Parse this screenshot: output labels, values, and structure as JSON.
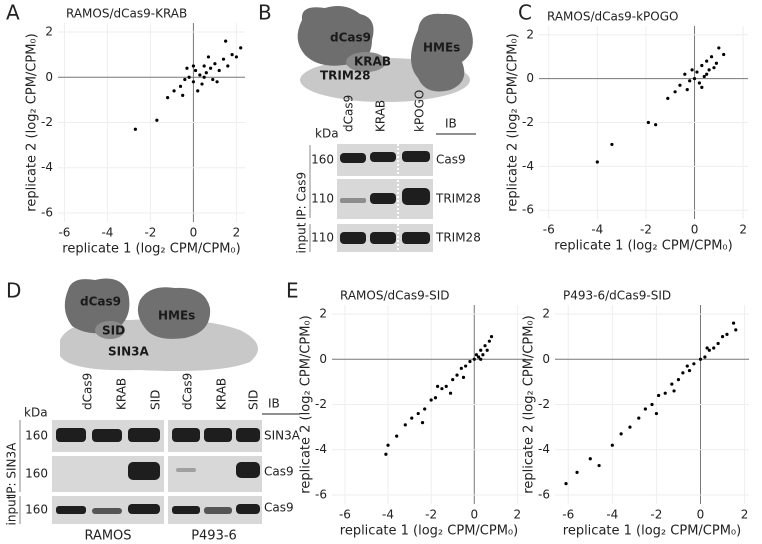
{
  "panel_labels": [
    "A",
    "B",
    "C",
    "D",
    "E"
  ],
  "chart_data": [
    {
      "type": "scatter",
      "title": "RAMOS/dCas9-KRAB",
      "xlabel": "replicate 1 (log₂ CPM/CPM₀)",
      "ylabel": "replicate 2 (log₂ CPM/CPM₀)",
      "xlim": [
        -6.3,
        2.4
      ],
      "ylim": [
        -6.4,
        2.4
      ],
      "xticks": [
        -6,
        -4,
        -2,
        0,
        2
      ],
      "yticks": [
        -6,
        -4,
        -2,
        0,
        2
      ],
      "color": "#000000",
      "x": [
        -2.7,
        -1.7,
        -1.2,
        -0.9,
        -0.6,
        -0.4,
        -0.2,
        0,
        0.1,
        0.3,
        0.4,
        0.5,
        0.6,
        0.8,
        0.9,
        1.0,
        1.2,
        1.4,
        1.6,
        1.8,
        2.0,
        2.2,
        0.2,
        -0.3,
        0.7,
        1.1,
        -0.5,
        0.0,
        0.5,
        1.5
      ],
      "values": [
        -2.3,
        -1.9,
        -0.9,
        -0.6,
        -0.4,
        -0.1,
        0.0,
        -0.2,
        0.3,
        0.1,
        -0.3,
        0.5,
        0.2,
        0.4,
        -0.1,
        0.6,
        0.3,
        0.8,
        0.5,
        1.0,
        0.9,
        1.3,
        -0.6,
        0.4,
        0.9,
        -0.2,
        -0.8,
        0.5,
        0.0,
        1.6
      ]
    },
    {
      "type": "scatter",
      "title": "RAMOS/dCas9-kPOGO",
      "xlabel": "replicate 1 (log₂ CPM/CPM₀)",
      "ylabel": "replicate 2 (log₂ CPM/CPM₀)",
      "xlim": [
        -6.4,
        2.2
      ],
      "ylim": [
        -6.4,
        2.4
      ],
      "xticks": [
        -6,
        -4,
        -2,
        0,
        2
      ],
      "yticks": [
        -6,
        -4,
        -2,
        0,
        2
      ],
      "color": "#000000",
      "x": [
        -4.0,
        -3.4,
        -1.9,
        -1.6,
        -1.1,
        -0.8,
        -0.6,
        -0.4,
        -0.2,
        -0.1,
        0.0,
        0.1,
        0.2,
        0.3,
        0.4,
        0.5,
        0.6,
        0.7,
        0.8,
        1.0,
        1.2,
        0.3,
        -0.3,
        0.5,
        0.9
      ],
      "values": [
        -3.8,
        -3.0,
        -2.0,
        -2.1,
        -0.9,
        -0.6,
        -0.3,
        0.2,
        -0.1,
        0.4,
        0.0,
        0.3,
        -0.2,
        0.6,
        0.1,
        0.8,
        0.4,
        1.0,
        0.5,
        1.4,
        1.1,
        -0.4,
        -0.5,
        0.2,
        0.7
      ]
    },
    {
      "type": "scatter",
      "title": "RAMOS/dCas9-SID",
      "xlabel": "replicate 1 (log₂ CPM/CPM₀)",
      "ylabel": "replicate 2 (log₂ CPM/CPM₀)",
      "xlim": [
        -6.6,
        2.4
      ],
      "ylim": [
        -6.4,
        2.4
      ],
      "xticks": [
        -6,
        -4,
        -2,
        0,
        2
      ],
      "yticks": [
        -6,
        -4,
        -2,
        0,
        2
      ],
      "color": "#000000",
      "x": [
        -4.1,
        -4.0,
        -3.6,
        -3.2,
        -2.9,
        -2.6,
        -2.3,
        -2.0,
        -1.8,
        -1.5,
        -1.3,
        -1.0,
        -0.8,
        -0.6,
        -0.4,
        -0.2,
        0.0,
        0.1,
        0.2,
        0.3,
        0.4,
        0.5,
        0.6,
        0.7,
        0.8,
        -1.1,
        -1.7,
        -0.5,
        0.3,
        -2.4
      ],
      "values": [
        -4.2,
        -3.8,
        -3.4,
        -2.9,
        -2.6,
        -2.4,
        -2.2,
        -1.8,
        -1.7,
        -1.3,
        -1.2,
        -0.9,
        -0.7,
        -0.4,
        -0.3,
        -0.1,
        0.0,
        0.2,
        0.1,
        0.4,
        0.2,
        0.6,
        0.4,
        0.8,
        1.0,
        -1.5,
        -1.2,
        -0.8,
        0.0,
        -2.8
      ]
    },
    {
      "type": "scatter",
      "title": "P493-6/dCas9-SID",
      "xlabel": "replicate 1 (log₂ CPM/CPM₀)",
      "ylabel": "replicate 2 (log₂ CPM/CPM₀)",
      "xlim": [
        -6.6,
        2.2
      ],
      "ylim": [
        -6.4,
        2.4
      ],
      "xticks": [
        -6,
        -4,
        -2,
        0,
        2
      ],
      "yticks": [
        -6,
        -4,
        -2,
        0,
        2
      ],
      "color": "#000000",
      "x": [
        -6.1,
        -5.6,
        -5.0,
        -4.6,
        -4.0,
        -3.6,
        -3.2,
        -2.8,
        -2.5,
        -2.2,
        -1.9,
        -1.6,
        -1.3,
        -1.0,
        -0.8,
        -0.5,
        -0.3,
        0.0,
        0.2,
        0.4,
        0.6,
        0.8,
        1.0,
        1.2,
        1.5,
        -2.0,
        -1.2,
        -0.6,
        0.3,
        1.6
      ],
      "values": [
        -5.5,
        -5.0,
        -4.4,
        -4.7,
        -3.8,
        -3.3,
        -3.0,
        -2.6,
        -2.2,
        -2.0,
        -1.6,
        -1.5,
        -1.1,
        -0.9,
        -0.6,
        -0.5,
        -0.2,
        0.0,
        0.1,
        0.4,
        0.5,
        0.7,
        1.0,
        1.1,
        1.6,
        -2.4,
        -1.4,
        -0.3,
        0.5,
        1.3
      ]
    }
  ],
  "panel_b": {
    "diagram": [
      "dCas9",
      "KRAB",
      "TRIM28",
      "HMEs"
    ],
    "lanes": [
      "dCas9",
      "KRAB",
      "kPOGO"
    ],
    "ib_header": "IB",
    "kda_header": "kDa",
    "rows": [
      [
        "160",
        "Cas9"
      ],
      [
        "110",
        "TRIM28"
      ],
      [
        "110",
        "TRIM28"
      ]
    ],
    "groups": [
      "IP: Cas9",
      "input"
    ]
  },
  "panel_d": {
    "diagram": [
      "dCas9",
      "SID",
      "HMEs",
      "SIN3A"
    ],
    "lanes": [
      "dCas9",
      "KRAB",
      "SID",
      "dCas9",
      "KRAB",
      "SID"
    ],
    "ib_header": "IB",
    "kda_header": "kDa",
    "rows": [
      [
        "160",
        "SIN3A"
      ],
      [
        "160",
        "Cas9"
      ],
      [
        "160",
        "Cas9"
      ]
    ],
    "groups": [
      "IP: SIN3A",
      "input"
    ],
    "cell_lines": [
      "RAMOS",
      "P493-6"
    ]
  }
}
